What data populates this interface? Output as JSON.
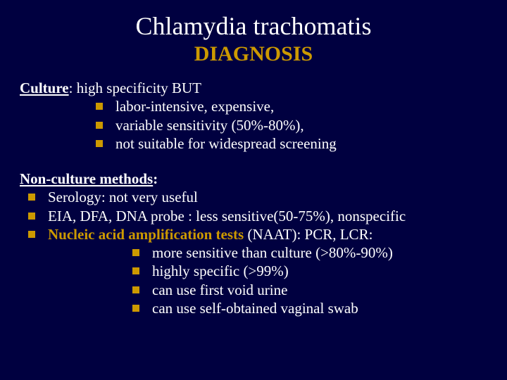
{
  "colors": {
    "background": "#000040",
    "title": "#ffffff",
    "subtitle": "#cc9900",
    "body_text": "#ffffff",
    "bullet": "#cc9900",
    "naat_highlight": "#cc9900"
  },
  "typography": {
    "family": "Times New Roman",
    "title_fontsize": 36,
    "subtitle_fontsize": 30,
    "body_fontsize": 21
  },
  "title": "Chlamydia trachomatis",
  "subtitle": "DIAGNOSIS",
  "culture": {
    "lead": "Culture",
    "rest": ": high specificity BUT",
    "items": [
      "labor-intensive, expensive,",
      "variable sensitivity (50%-80%),",
      "not suitable for widespread screening"
    ]
  },
  "nonculture": {
    "lead": "Non-culture methods",
    "rest": ":",
    "items": [
      "Serology: not very useful",
      "EIA, DFA, DNA probe : less sensitive(50-75%), nonspecific"
    ],
    "naat": {
      "lead": "Nucleic acid amplification tests",
      "rest": " (NAAT): PCR, LCR:",
      "subitems": [
        "more sensitive than culture (>80%-90%)",
        "highly specific (>99%)",
        "can use first void urine",
        "can use self-obtained vaginal swab"
      ]
    }
  }
}
